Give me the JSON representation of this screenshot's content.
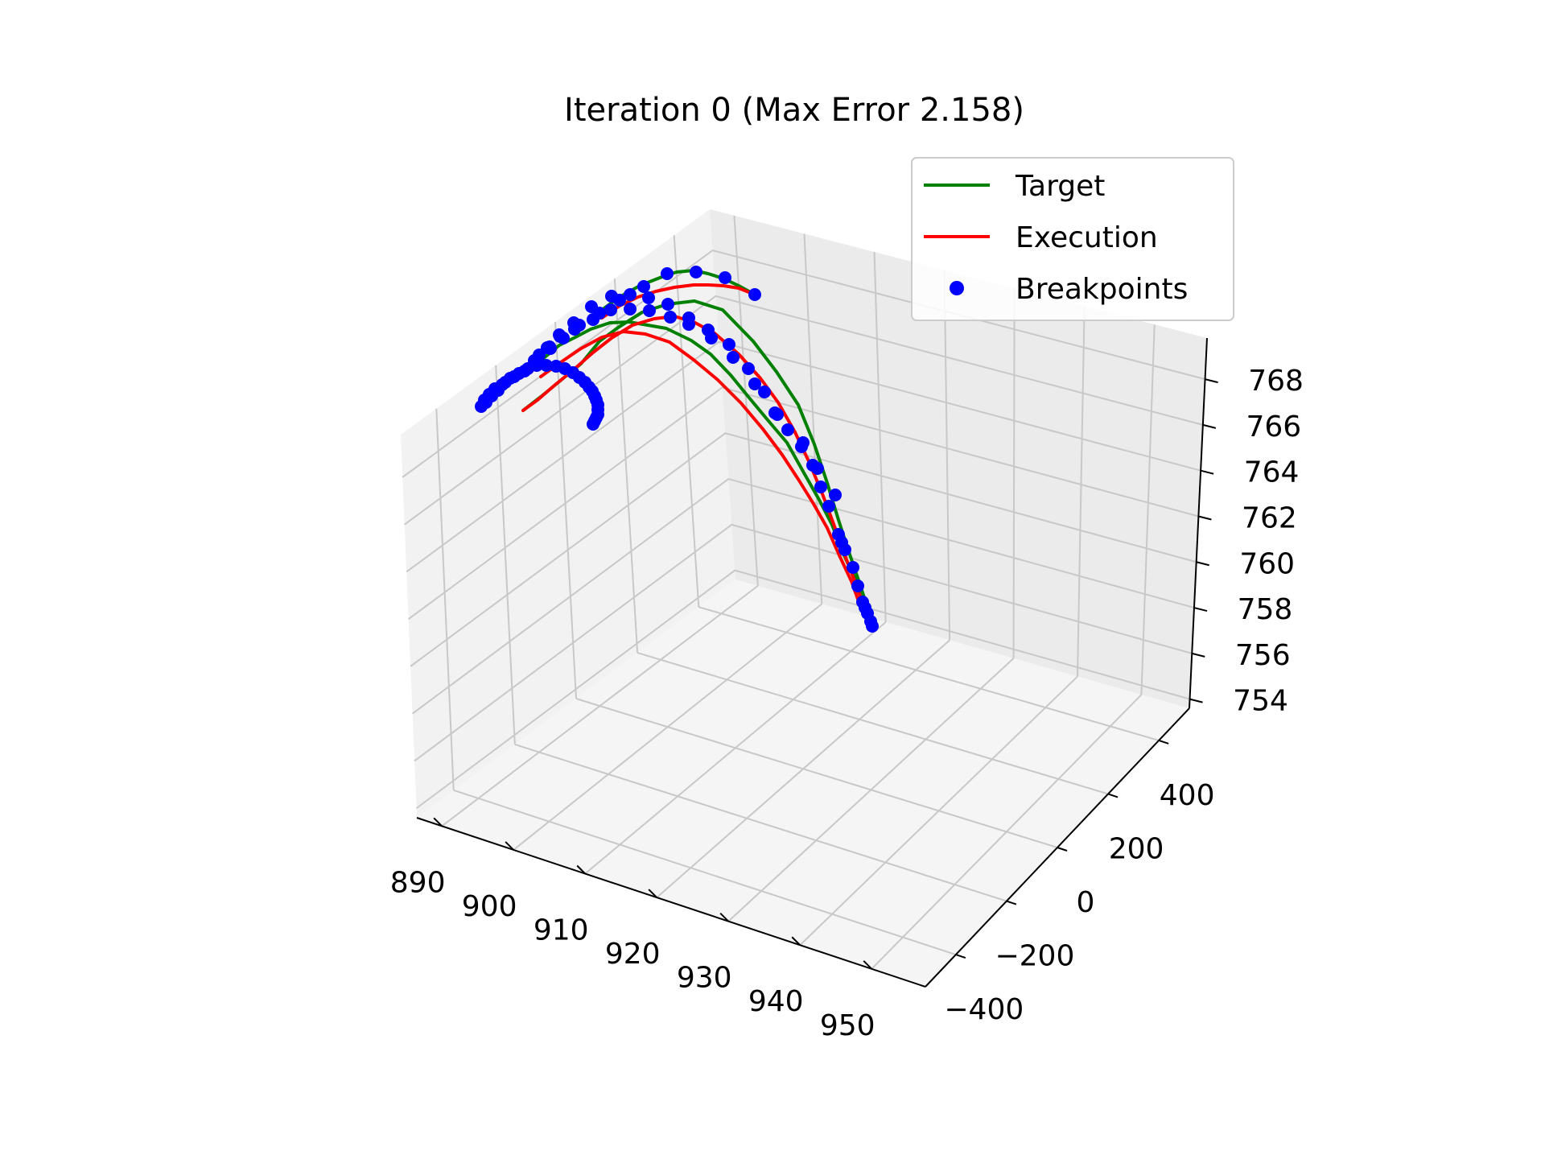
{
  "chart_data": {
    "type": "line",
    "projection": "3d",
    "title": "Iteration 0 (Max Error 2.158)",
    "xlabel": "",
    "ylabel": "",
    "zlabel": "",
    "x_ticks": [
      "890",
      "900",
      "910",
      "920",
      "930",
      "940",
      "950"
    ],
    "y_ticks": [
      "−400",
      "−200",
      "0",
      "200",
      "400"
    ],
    "z_ticks": [
      "754",
      "756",
      "758",
      "760",
      "762",
      "764",
      "766",
      "768"
    ],
    "grid": true,
    "legend": {
      "placement": "top-right",
      "entries": [
        {
          "label": "Target",
          "color": "#008000",
          "style": "line"
        },
        {
          "label": "Execution",
          "color": "#ff0000",
          "style": "line"
        },
        {
          "label": "Breakpoints",
          "color": "#0000ff",
          "style": "marker"
        }
      ]
    },
    "series": [
      {
        "name": "Target",
        "color": "#008000",
        "paths": [
          [
            [
              1083,
              772
            ],
            [
              1077,
              752
            ],
            [
              1068,
              724
            ],
            [
              1055,
              686
            ],
            [
              1042,
              646
            ],
            [
              1028,
              600
            ],
            [
              1012,
              552
            ],
            [
              992,
              503
            ],
            [
              965,
              462
            ],
            [
              936,
              424
            ],
            [
              898,
              385
            ],
            [
              863,
              374
            ],
            [
              829,
              378
            ],
            [
              798,
              388
            ],
            [
              768,
              407
            ],
            [
              745,
              424
            ],
            [
              722,
              452
            ],
            [
              700,
              470
            ],
            [
              672,
              493
            ],
            [
              650,
              510
            ]
          ],
          [
            [
              1083,
              772
            ],
            [
              1072,
              750
            ],
            [
              1063,
              720
            ],
            [
              1048,
              688
            ],
            [
              1034,
              652
            ],
            [
              1018,
              621
            ],
            [
              1001,
              591
            ],
            [
              978,
              550
            ],
            [
              955,
              523
            ],
            [
              930,
              493
            ],
            [
              908,
              466
            ],
            [
              883,
              440
            ],
            [
              859,
              423
            ],
            [
              828,
              408
            ],
            [
              805,
              404
            ],
            [
              782,
              400
            ],
            [
              758,
              401
            ],
            [
              734,
              409
            ],
            [
              715,
              419
            ],
            [
              695,
              429
            ],
            [
              672,
              448
            ]
          ],
          [
            [
              938,
              366
            ],
            [
              918,
              355
            ],
            [
              899,
              346
            ],
            [
              880,
              340
            ],
            [
              862,
              336
            ],
            [
              841,
              338
            ],
            [
              828,
              342
            ],
            [
              815,
              347
            ],
            [
              795,
              355
            ],
            [
              770,
              369
            ],
            [
              748,
              385
            ]
          ]
        ]
      },
      {
        "name": "Execution",
        "color": "#ff0000",
        "paths": [
          [
            [
              1080,
              772
            ],
            [
              1073,
              752
            ],
            [
              1063,
              724
            ],
            [
              1050,
              690
            ],
            [
              1036,
              651
            ],
            [
              1021,
              611
            ],
            [
              1005,
              573
            ],
            [
              988,
              537
            ],
            [
              967,
              500
            ],
            [
              945,
              470
            ],
            [
              918,
              440
            ],
            [
              888,
              414
            ],
            [
              862,
              400
            ],
            [
              838,
              393
            ],
            [
              813,
              396
            ],
            [
              786,
              404
            ],
            [
              760,
              420
            ],
            [
              737,
              438
            ],
            [
              712,
              460
            ],
            [
              690,
              478
            ],
            [
              668,
              497
            ],
            [
              650,
              510
            ]
          ],
          [
            [
              1080,
              772
            ],
            [
              1068,
              750
            ],
            [
              1058,
              722
            ],
            [
              1043,
              690
            ],
            [
              1028,
              656
            ],
            [
              1011,
              626
            ],
            [
              993,
              597
            ],
            [
              972,
              565
            ],
            [
              948,
              533
            ],
            [
              921,
              501
            ],
            [
              892,
              472
            ],
            [
              862,
              447
            ],
            [
              832,
              425
            ],
            [
              802,
              415
            ],
            [
              775,
              412
            ],
            [
              748,
              419
            ],
            [
              722,
              433
            ],
            [
              697,
              450
            ],
            [
              672,
              468
            ]
          ],
          [
            [
              938,
              366
            ],
            [
              918,
              358
            ],
            [
              899,
              355
            ],
            [
              880,
              354
            ],
            [
              862,
              354
            ],
            [
              838,
              357
            ],
            [
              815,
              362
            ],
            [
              793,
              369
            ],
            [
              770,
              380
            ],
            [
              748,
              395
            ]
          ]
        ]
      },
      {
        "name": "Breakpoints",
        "color": "#0000ff",
        "marker": true,
        "points": [
          [
            1084,
            778
          ],
          [
            1082,
            772
          ],
          [
            1078,
            762
          ],
          [
            1075,
            755
          ],
          [
            1072,
            748
          ],
          [
            1066,
            728
          ],
          [
            1060,
            705
          ],
          [
            1050,
            683
          ],
          [
            1046,
            674
          ],
          [
            1042,
            664
          ],
          [
            1030,
            629
          ],
          [
            1020,
            605
          ],
          [
            1010,
            578
          ],
          [
            996,
            555
          ],
          [
            979,
            534
          ],
          [
            966,
            515
          ],
          [
            950,
            487
          ],
          [
            930,
            458
          ],
          [
            906,
            428
          ],
          [
            880,
            410
          ],
          [
            856,
            395
          ],
          [
            830,
            378
          ],
          [
            806,
            370
          ],
          [
            783,
            366
          ],
          [
            760,
            368
          ],
          [
            735,
            381
          ],
          [
            713,
            401
          ],
          [
            695,
            416
          ],
          [
            683,
            431
          ],
          [
            670,
            441
          ],
          [
            1038,
            615
          ],
          [
            1016,
            582
          ],
          [
            998,
            550
          ],
          [
            963,
            513
          ],
          [
            938,
            477
          ],
          [
            911,
            444
          ],
          [
            884,
            420
          ],
          [
            856,
            403
          ],
          [
            833,
            394
          ],
          [
            807,
            386
          ],
          [
            783,
            384
          ],
          [
            759,
            385
          ],
          [
            737,
            397
          ],
          [
            714,
            409
          ],
          [
            696,
            418
          ],
          [
            680,
            432
          ],
          [
            664,
            448
          ],
          [
            938,
            366
          ],
          [
            901,
            345
          ],
          [
            865,
            338
          ],
          [
            829,
            340
          ],
          [
            800,
            356
          ],
          [
            770,
            373
          ],
          [
            745,
            389
          ],
          [
            720,
            404
          ],
          [
            700,
            420
          ],
          [
            684,
            433
          ],
          [
            668,
            446
          ],
          [
            652,
            461
          ],
          [
            639,
            468
          ],
          [
            628,
            475
          ],
          [
            619,
            485
          ],
          [
            611,
            492
          ],
          [
            604,
            500
          ],
          [
            598,
            505
          ],
          [
            602,
            497
          ],
          [
            608,
            490
          ],
          [
            615,
            483
          ],
          [
            624,
            478
          ],
          [
            634,
            470
          ],
          [
            645,
            464
          ],
          [
            656,
            458
          ],
          [
            667,
            454
          ],
          [
            679,
            454
          ],
          [
            691,
            455
          ],
          [
            702,
            458
          ],
          [
            712,
            463
          ],
          [
            720,
            469
          ],
          [
            727,
            475
          ],
          [
            732,
            481
          ],
          [
            736,
            486
          ],
          [
            739,
            492
          ],
          [
            741,
            497
          ],
          [
            743,
            503
          ],
          [
            743,
            509
          ],
          [
            743,
            515
          ],
          [
            741,
            519
          ],
          [
            739,
            523
          ],
          [
            737,
            527
          ]
        ]
      }
    ]
  }
}
